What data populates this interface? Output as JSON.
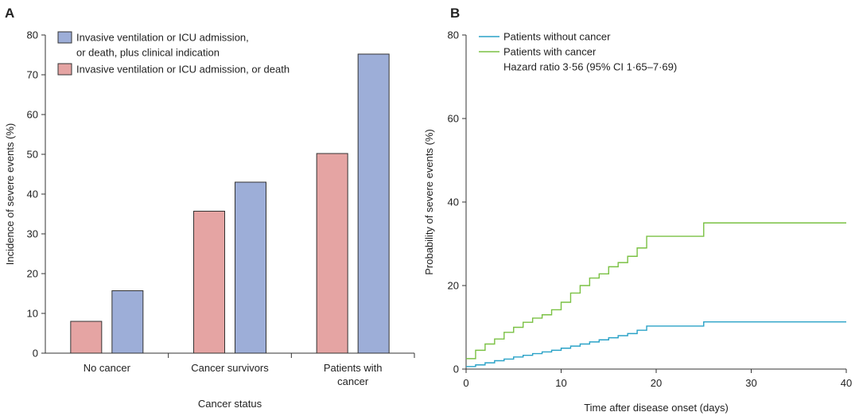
{
  "chart_data": [
    {
      "panel": "A",
      "type": "bar",
      "xlabel": "Cancer status",
      "ylabel": "Incidence of severe events (%)",
      "ylim": [
        0,
        80
      ],
      "yticks": [
        0,
        10,
        20,
        30,
        40,
        50,
        60,
        70,
        80
      ],
      "categories": [
        {
          "lines": [
            "No cancer"
          ]
        },
        {
          "lines": [
            "Cancer survivors"
          ]
        },
        {
          "lines": [
            "Patients with",
            "cancer"
          ]
        }
      ],
      "series": [
        {
          "name_lines": [
            "Invasive ventilation or ICU admission, or death"
          ],
          "color": "#e5a4a3",
          "values": [
            8.0,
            35.7,
            50.2
          ]
        },
        {
          "name_lines": [
            "Invasive ventilation or ICU admission,",
            "or death, plus clinical indication"
          ],
          "color": "#9daed8",
          "values": [
            15.7,
            43.0,
            75.2
          ]
        }
      ],
      "legend_position": "top-left"
    },
    {
      "panel": "B",
      "type": "line",
      "xlabel": "Time after disease onset (days)",
      "ylabel": "Probability of severe events (%)",
      "xlim": [
        0,
        40
      ],
      "ylim": [
        0,
        80
      ],
      "xticks": [
        0,
        10,
        20,
        30,
        40
      ],
      "yticks": [
        0,
        20,
        40,
        60,
        80
      ],
      "series": [
        {
          "name": "Patients without cancer",
          "color": "#2aa2c7",
          "x": [
            0,
            1,
            2,
            3,
            4,
            5,
            6,
            7,
            8,
            9,
            10,
            11,
            12,
            13,
            14,
            15,
            16,
            17,
            18,
            19,
            25,
            40
          ],
          "y": [
            0.6,
            1.0,
            1.5,
            2.0,
            2.4,
            2.9,
            3.3,
            3.7,
            4.1,
            4.5,
            5.0,
            5.5,
            6.0,
            6.5,
            7.0,
            7.5,
            8.0,
            8.5,
            9.3,
            10.3,
            11.3,
            11.3
          ]
        },
        {
          "name": "Patients with cancer",
          "color": "#7ac143",
          "x": [
            0,
            1,
            2,
            3,
            4,
            5,
            6,
            7,
            8,
            9,
            10,
            11,
            12,
            13,
            14,
            15,
            16,
            17,
            18,
            19,
            25,
            40
          ],
          "y": [
            2.5,
            4.5,
            6.0,
            7.2,
            8.8,
            10.0,
            11.2,
            12.2,
            13.0,
            14.2,
            16.0,
            18.2,
            20.0,
            21.8,
            22.8,
            24.5,
            25.5,
            27.0,
            29.0,
            31.8,
            35.0,
            35.0
          ]
        }
      ],
      "annotation": "Hazard ratio 3·56 (95% CI 1·65–7·69)",
      "legend_position": "top-left"
    }
  ]
}
